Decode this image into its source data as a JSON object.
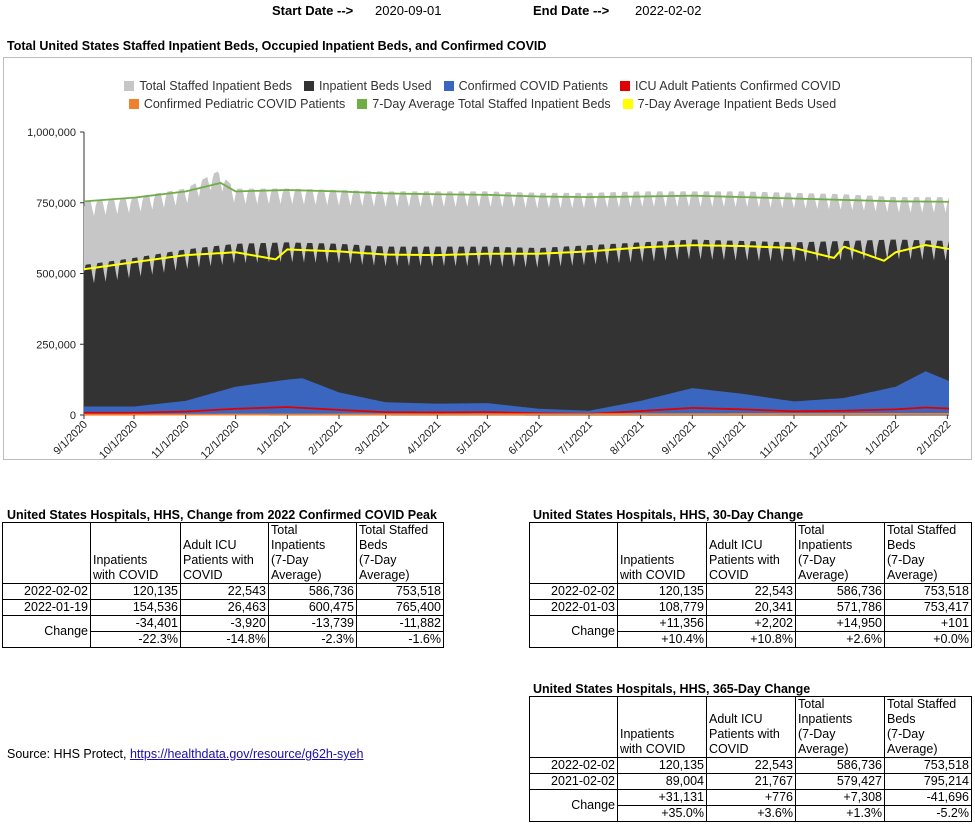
{
  "header": {
    "start_label": "Start Date -->",
    "start_value": "2020-09-01",
    "end_label": "End Date -->",
    "end_value": "2022-02-02"
  },
  "chart_data": {
    "type": "area",
    "title": "Total United States Staffed Inpatient Beds, Occupied Inpatient Beds, and Confirmed COVID",
    "y_ticks": [
      "1,000,000",
      "750,000",
      "500,000",
      "250,000",
      "0"
    ],
    "ylim": [
      0,
      1000000
    ],
    "x_ticks": [
      "9/1/2020",
      "10/1/2020",
      "11/1/2020",
      "12/1/2020",
      "1/1/2021",
      "2/1/2021",
      "3/1/2021",
      "4/1/2021",
      "5/1/2021",
      "6/1/2021",
      "7/1/2021",
      "8/1/2021",
      "9/1/2021",
      "10/1/2021",
      "11/1/2021",
      "12/1/2021",
      "1/1/2022",
      "2/1/2022"
    ],
    "x_range": [
      "2020-09-01",
      "2022-02-02"
    ],
    "legend_placement": "top",
    "grid": false,
    "series": [
      {
        "name": "Total Staffed Inpatient Beds",
        "color": "#c6c6c6",
        "kind": "area-weekly",
        "x": [
          "2020-09-01",
          "2020-10-01",
          "2020-11-01",
          "2020-11-20",
          "2020-12-01",
          "2021-01-01",
          "2021-02-01",
          "2021-03-01",
          "2021-04-01",
          "2021-05-01",
          "2021-06-01",
          "2021-07-01",
          "2021-08-01",
          "2021-09-01",
          "2021-10-01",
          "2021-11-01",
          "2021-12-01",
          "2022-01-01",
          "2022-02-02"
        ],
        "y": [
          755000,
          770000,
          800000,
          860000,
          800000,
          800000,
          795000,
          790000,
          790000,
          790000,
          785000,
          785000,
          790000,
          790000,
          790000,
          785000,
          780000,
          770000,
          770000
        ],
        "weekly_dip": 55000
      },
      {
        "name": "Inpatient Beds Used",
        "color": "#333333",
        "kind": "area-weekly",
        "x": [
          "2020-09-01",
          "2020-10-01",
          "2020-11-01",
          "2020-12-01",
          "2021-01-01",
          "2021-02-01",
          "2021-03-01",
          "2021-04-01",
          "2021-05-01",
          "2021-06-01",
          "2021-07-01",
          "2021-08-01",
          "2021-09-01",
          "2021-10-01",
          "2021-11-01",
          "2021-12-01",
          "2022-01-01",
          "2022-02-02"
        ],
        "y": [
          530000,
          555000,
          585000,
          605000,
          610000,
          605000,
          595000,
          595000,
          595000,
          590000,
          600000,
          610000,
          620000,
          615000,
          610000,
          615000,
          620000,
          615000
        ],
        "weekly_dip": 70000
      },
      {
        "name": "Confirmed COVID Patients",
        "color": "#3a66c0",
        "kind": "area",
        "x": [
          "2020-09-01",
          "2020-10-01",
          "2020-11-01",
          "2020-12-01",
          "2021-01-01",
          "2021-01-10",
          "2021-02-01",
          "2021-03-01",
          "2021-04-01",
          "2021-05-01",
          "2021-06-01",
          "2021-07-01",
          "2021-08-01",
          "2021-09-01",
          "2021-10-01",
          "2021-11-01",
          "2021-12-01",
          "2022-01-01",
          "2022-01-19",
          "2022-02-02"
        ],
        "y": [
          30000,
          30000,
          50000,
          100000,
          125000,
          130000,
          80000,
          45000,
          40000,
          42000,
          22000,
          15000,
          50000,
          95000,
          75000,
          48000,
          60000,
          100000,
          154536,
          120135
        ]
      },
      {
        "name": "ICU Adult Patients Confirmed COVID",
        "color": "#e00000",
        "kind": "line",
        "x": [
          "2020-09-01",
          "2020-10-01",
          "2020-11-01",
          "2020-12-01",
          "2021-01-01",
          "2021-02-01",
          "2021-03-01",
          "2021-04-01",
          "2021-05-01",
          "2021-06-01",
          "2021-07-01",
          "2021-08-01",
          "2021-09-01",
          "2021-10-01",
          "2021-11-01",
          "2021-12-01",
          "2022-01-01",
          "2022-01-19",
          "2022-02-02"
        ],
        "y": [
          8000,
          8000,
          12000,
          22000,
          28000,
          18000,
          10000,
          9000,
          10000,
          6000,
          4000,
          14000,
          25000,
          20000,
          13000,
          15000,
          20000,
          26463,
          22543
        ]
      },
      {
        "name": "Confirmed Pediatric COVID Patients",
        "color": "#f08030",
        "kind": "line",
        "x": [
          "2020-09-01",
          "2022-02-02"
        ],
        "y": [
          1000,
          4000
        ]
      },
      {
        "name": "7-Day Average Total Staffed Inpatient Beds",
        "color": "#70ad47",
        "kind": "line",
        "x": [
          "2020-09-01",
          "2020-10-01",
          "2020-11-01",
          "2020-11-22",
          "2020-12-01",
          "2021-01-01",
          "2021-02-01",
          "2021-03-01",
          "2021-04-01",
          "2021-05-01",
          "2021-06-01",
          "2021-07-01",
          "2021-08-01",
          "2021-09-01",
          "2021-10-01",
          "2021-11-01",
          "2021-12-01",
          "2022-01-01",
          "2022-02-02"
        ],
        "y": [
          755000,
          768000,
          790000,
          820000,
          790000,
          795000,
          790000,
          783000,
          780000,
          778000,
          772000,
          770000,
          772000,
          775000,
          770000,
          765000,
          760000,
          755000,
          753518
        ]
      },
      {
        "name": "7-Day Average Inpatient Beds Used",
        "color": "#ffff00",
        "kind": "line",
        "x": [
          "2020-09-01",
          "2020-10-01",
          "2020-11-01",
          "2020-12-01",
          "2020-12-25",
          "2021-01-01",
          "2021-02-01",
          "2021-03-01",
          "2021-04-01",
          "2021-05-01",
          "2021-06-01",
          "2021-07-01",
          "2021-08-01",
          "2021-09-01",
          "2021-10-01",
          "2021-11-01",
          "2021-11-25",
          "2021-12-01",
          "2021-12-25",
          "2022-01-01",
          "2022-01-19",
          "2022-02-02"
        ],
        "y": [
          515000,
          540000,
          565000,
          575000,
          550000,
          585000,
          578000,
          567000,
          565000,
          570000,
          570000,
          578000,
          592000,
          600000,
          597000,
          590000,
          555000,
          595000,
          545000,
          575000,
          600475,
          586736
        ]
      }
    ]
  },
  "legend_rows": [
    [
      "Total Staffed Inpatient Beds",
      "Inpatient Beds Used",
      "Confirmed COVID Patients",
      "ICU Adult Patients Confirmed COVID"
    ],
    [
      "Confirmed Pediatric COVID Patients",
      "7-Day Average Total Staffed Inpatient Beds",
      "7-Day Average Inpatient Beds Used"
    ]
  ],
  "column_headers": [
    [
      "Inpatients",
      "with COVID"
    ],
    [
      "Adult ICU",
      "Patients with",
      "COVID"
    ],
    [
      "Total",
      "Inpatients",
      "(7-Day",
      "Average)"
    ],
    [
      "Total Staffed",
      "Beds",
      "(7-Day",
      "Average)"
    ]
  ],
  "change_label": "Change",
  "tables": [
    {
      "title": "United States Hospitals, HHS, Change from 2022 Confirmed COVID Peak",
      "rows": [
        {
          "date": "2022-02-02",
          "values": [
            "120,135",
            "22,543",
            "586,736",
            "753,518"
          ]
        },
        {
          "date": "2022-01-19",
          "values": [
            "154,536",
            "26,463",
            "600,475",
            "765,400"
          ]
        }
      ],
      "change_abs": [
        "-34,401",
        "-3,920",
        "-13,739",
        "-11,882"
      ],
      "change_pct": [
        "-22.3%",
        "-14.8%",
        "-2.3%",
        "-1.6%"
      ]
    },
    {
      "title": "United States Hospitals, HHS, 30-Day Change",
      "rows": [
        {
          "date": "2022-02-02",
          "values": [
            "120,135",
            "22,543",
            "586,736",
            "753,518"
          ]
        },
        {
          "date": "2022-01-03",
          "values": [
            "108,779",
            "20,341",
            "571,786",
            "753,417"
          ]
        }
      ],
      "change_abs": [
        "+11,356",
        "+2,202",
        "+14,950",
        "+101"
      ],
      "change_pct": [
        "+10.4%",
        "+10.8%",
        "+2.6%",
        "+0.0%"
      ]
    },
    {
      "title": "United States Hospitals, HHS, 365-Day Change",
      "rows": [
        {
          "date": "2022-02-02",
          "values": [
            "120,135",
            "22,543",
            "586,736",
            "753,518"
          ]
        },
        {
          "date": "2021-02-02",
          "values": [
            "89,004",
            "21,767",
            "579,427",
            "795,214"
          ]
        }
      ],
      "change_abs": [
        "+31,131",
        "+776",
        "+7,308",
        "-41,696"
      ],
      "change_pct": [
        "+35.0%",
        "+3.6%",
        "+1.3%",
        "-5.2%"
      ]
    }
  ],
  "source": {
    "prefix": "Source: HHS Protect, ",
    "link": "https://healthdata.gov/resource/g62h-syeh"
  }
}
